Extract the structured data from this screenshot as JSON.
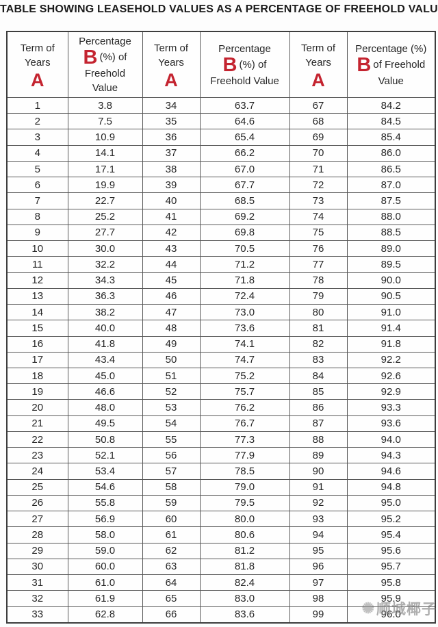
{
  "title": "TABLE SHOWING LEASEHOLD VALUES AS A PERCENTAGE OF FREEHOLD VALUE",
  "accent_color": "#c42430",
  "headers": {
    "term": {
      "line1": "Term of",
      "line2": "Years",
      "letter": "A"
    },
    "pct1": {
      "top": "Percentage",
      "letter": "B",
      "mid": "(%) of",
      "rest1": "Freehold",
      "rest2": "Value"
    },
    "pct2": {
      "top": "Percentage",
      "letter": "B",
      "mid": "(%) of",
      "rest1": "Freehold Value"
    },
    "pct3": {
      "top": "Percentage (%)",
      "letter": "B",
      "mid": "of Freehold",
      "rest1": "Value"
    }
  },
  "rows": [
    [
      "1",
      "3.8",
      "34",
      "63.7",
      "67",
      "84.2"
    ],
    [
      "2",
      "7.5",
      "35",
      "64.6",
      "68",
      "84.5"
    ],
    [
      "3",
      "10.9",
      "36",
      "65.4",
      "69",
      "85.4"
    ],
    [
      "4",
      "14.1",
      "37",
      "66.2",
      "70",
      "86.0"
    ],
    [
      "5",
      "17.1",
      "38",
      "67.0",
      "71",
      "86.5"
    ],
    [
      "6",
      "19.9",
      "39",
      "67.7",
      "72",
      "87.0"
    ],
    [
      "7",
      "22.7",
      "40",
      "68.5",
      "73",
      "87.5"
    ],
    [
      "8",
      "25.2",
      "41",
      "69.2",
      "74",
      "88.0"
    ],
    [
      "9",
      "27.7",
      "42",
      "69.8",
      "75",
      "88.5"
    ],
    [
      "10",
      "30.0",
      "43",
      "70.5",
      "76",
      "89.0"
    ],
    [
      "11",
      "32.2",
      "44",
      "71.2",
      "77",
      "89.5"
    ],
    [
      "12",
      "34.3",
      "45",
      "71.8",
      "78",
      "90.0"
    ],
    [
      "13",
      "36.3",
      "46",
      "72.4",
      "79",
      "90.5"
    ],
    [
      "14",
      "38.2",
      "47",
      "73.0",
      "80",
      "91.0"
    ],
    [
      "15",
      "40.0",
      "48",
      "73.6",
      "81",
      "91.4"
    ],
    [
      "16",
      "41.8",
      "49",
      "74.1",
      "82",
      "91.8"
    ],
    [
      "17",
      "43.4",
      "50",
      "74.7",
      "83",
      "92.2"
    ],
    [
      "18",
      "45.0",
      "51",
      "75.2",
      "84",
      "92.6"
    ],
    [
      "19",
      "46.6",
      "52",
      "75.7",
      "85",
      "92.9"
    ],
    [
      "20",
      "48.0",
      "53",
      "76.2",
      "86",
      "93.3"
    ],
    [
      "21",
      "49.5",
      "54",
      "76.7",
      "87",
      "93.6"
    ],
    [
      "22",
      "50.8",
      "55",
      "77.3",
      "88",
      "94.0"
    ],
    [
      "23",
      "52.1",
      "56",
      "77.9",
      "89",
      "94.3"
    ],
    [
      "24",
      "53.4",
      "57",
      "78.5",
      "90",
      "94.6"
    ],
    [
      "25",
      "54.6",
      "58",
      "79.0",
      "91",
      "94.8"
    ],
    [
      "26",
      "55.8",
      "59",
      "79.5",
      "92",
      "95.0"
    ],
    [
      "27",
      "56.9",
      "60",
      "80.0",
      "93",
      "95.2"
    ],
    [
      "28",
      "58.0",
      "61",
      "80.6",
      "94",
      "95.4"
    ],
    [
      "29",
      "59.0",
      "62",
      "81.2",
      "95",
      "95.6"
    ],
    [
      "30",
      "60.0",
      "63",
      "81.8",
      "96",
      "95.7"
    ],
    [
      "31",
      "61.0",
      "64",
      "82.4",
      "97",
      "95.8"
    ],
    [
      "32",
      "61.9",
      "65",
      "83.0",
      "98",
      "95.9"
    ],
    [
      "33",
      "62.8",
      "66",
      "83.6",
      "99",
      "96.0"
    ]
  ],
  "watermark": {
    "text": "顺城椰子",
    "icon": "sunburst-logo"
  }
}
